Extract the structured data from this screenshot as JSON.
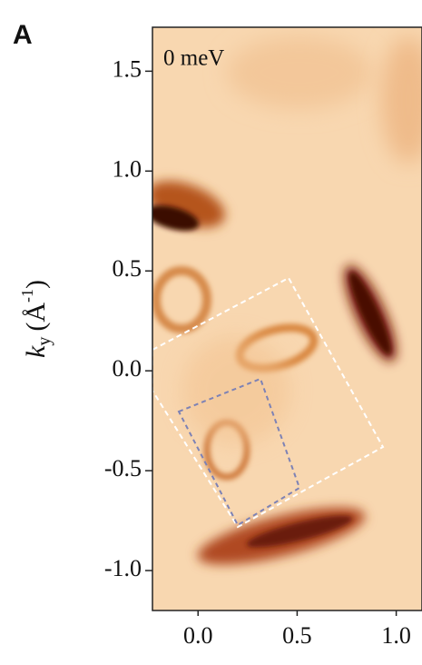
{
  "chart_data": {
    "type": "image",
    "panel_label": "A",
    "annotation": "0 meV",
    "ylabel": {
      "symbol": "k",
      "sub": "y",
      "unit": "(Å",
      "sup": "-1",
      "close": ")"
    },
    "xlim": [
      -0.23,
      1.13
    ],
    "ylim": [
      -1.2,
      1.72
    ],
    "xticks": [
      {
        "value": 0,
        "label": "0.0"
      },
      0.5,
      {
        "value": 1,
        "label": "1.0"
      }
    ],
    "yticks": [
      {
        "value": -1,
        "label": "-1.0"
      },
      -0.5,
      {
        "value": 0,
        "label": "0.0"
      },
      0.5,
      {
        "value": 1,
        "label": "1.0"
      },
      1.5
    ]
  }
}
